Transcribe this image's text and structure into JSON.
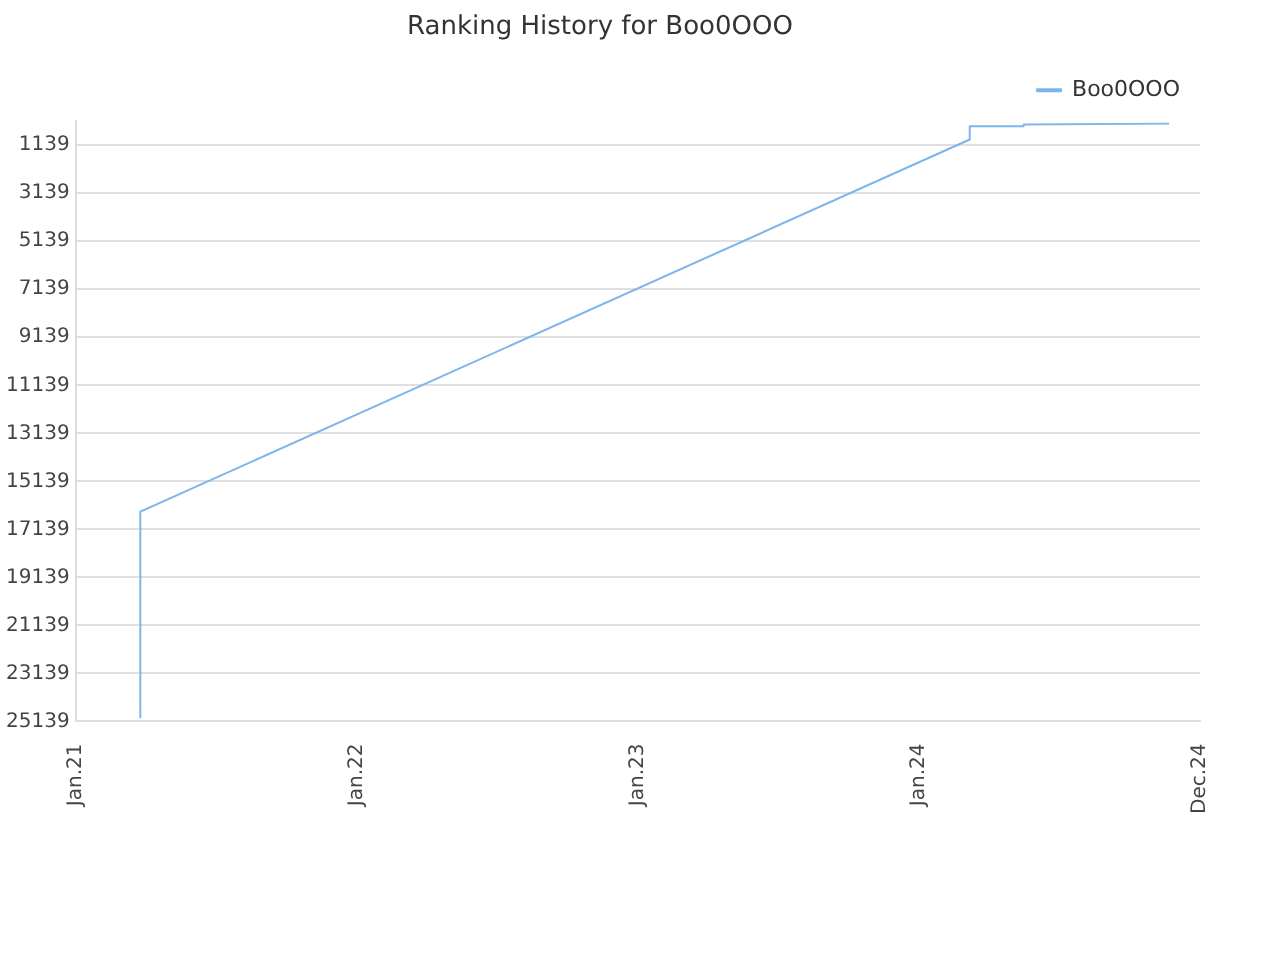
{
  "chart_data": {
    "type": "line",
    "title": "Ranking History for Boo0OOO",
    "series": [
      {
        "name": "Boo0OOO",
        "color": "#7cb5ec",
        "x": [
          "2021-03-26",
          "2021-03-26",
          "2024-03-07",
          "2024-03-07",
          "2024-05-16",
          "2024-05-16",
          "2024-11-21"
        ],
        "values": [
          25000,
          16400,
          900,
          350,
          350,
          280,
          240
        ]
      }
    ],
    "xlim": [
      "2021-01-01",
      "2024-12-31"
    ],
    "xticks": [
      {
        "value": "2021-01-01",
        "label": "Jan.21"
      },
      {
        "value": "2022-01-01",
        "label": "Jan.22"
      },
      {
        "value": "2023-01-01",
        "label": "Jan.23"
      },
      {
        "value": "2024-01-01",
        "label": "Jan.24"
      },
      {
        "value": "2024-12-31",
        "label": "Dec.24"
      }
    ],
    "ylim": [
      25139,
      139
    ],
    "yticks": [
      1139,
      3139,
      5139,
      7139,
      9139,
      11139,
      13139,
      15139,
      17139,
      19139,
      21139,
      23139,
      25139
    ],
    "grid": "y",
    "legend": "top right",
    "marker": "none",
    "line_style": "solid"
  }
}
